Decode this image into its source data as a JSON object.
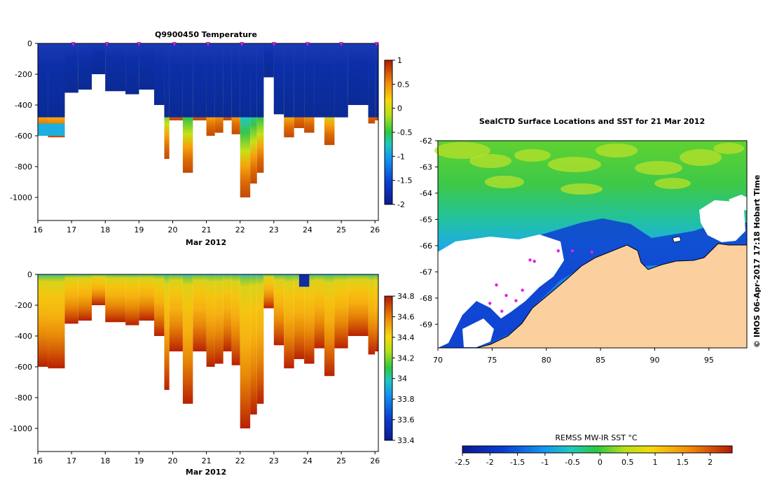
{
  "chart_data": [
    {
      "type": "heatmap",
      "title": "Q9900450  Temperature",
      "variable": "temperature",
      "xlabel": "Mar 2012",
      "ylabel": "",
      "xlim": [
        16,
        26.1
      ],
      "ylim": [
        -1150,
        0
      ],
      "x_ticks": [
        "16",
        "17",
        "18",
        "19",
        "20",
        "21",
        "22",
        "23",
        "24",
        "25",
        "26"
      ],
      "y_ticks": [
        "0",
        "-200",
        "-400",
        "-600",
        "-800",
        "-1000"
      ],
      "colorbar_range": [
        -2,
        1
      ],
      "colorbar_ticks": [
        "1",
        "0.5",
        "0",
        "-0.5",
        "-1",
        "-1.5",
        "-2"
      ],
      "markers": [
        17.05,
        18.05,
        19.0,
        20.05,
        21.05,
        22.05,
        23.0,
        24.0,
        25.0,
        26.05
      ],
      "profiles": [
        {
          "x": 16.0,
          "w": 0.3,
          "depth": 600
        },
        {
          "x": 16.3,
          "w": 0.5,
          "depth": 610
        },
        {
          "x": 16.8,
          "w": 0.4,
          "depth": 320
        },
        {
          "x": 17.2,
          "w": 0.4,
          "depth": 300
        },
        {
          "x": 17.6,
          "w": 0.4,
          "depth": 200
        },
        {
          "x": 18.0,
          "w": 0.6,
          "depth": 310
        },
        {
          "x": 18.6,
          "w": 0.4,
          "depth": 330
        },
        {
          "x": 19.0,
          "w": 0.45,
          "depth": 300
        },
        {
          "x": 19.45,
          "w": 0.3,
          "depth": 400
        },
        {
          "x": 19.75,
          "w": 0.15,
          "depth": 750
        },
        {
          "x": 19.9,
          "w": 0.4,
          "depth": 500
        },
        {
          "x": 20.3,
          "w": 0.3,
          "depth": 840
        },
        {
          "x": 20.6,
          "w": 0.4,
          "depth": 500
        },
        {
          "x": 21.0,
          "w": 0.25,
          "depth": 600
        },
        {
          "x": 21.25,
          "w": 0.25,
          "depth": 580
        },
        {
          "x": 21.5,
          "w": 0.25,
          "depth": 500
        },
        {
          "x": 21.75,
          "w": 0.25,
          "depth": 590
        },
        {
          "x": 22.0,
          "w": 0.3,
          "depth": 1000
        },
        {
          "x": 22.3,
          "w": 0.2,
          "depth": 910
        },
        {
          "x": 22.5,
          "w": 0.2,
          "depth": 840
        },
        {
          "x": 22.7,
          "w": 0.3,
          "depth": 220
        },
        {
          "x": 23.0,
          "w": 0.3,
          "depth": 460
        },
        {
          "x": 23.3,
          "w": 0.3,
          "depth": 610
        },
        {
          "x": 23.6,
          "w": 0.3,
          "depth": 550
        },
        {
          "x": 23.9,
          "w": 0.3,
          "depth": 580
        },
        {
          "x": 24.2,
          "w": 0.3,
          "depth": 480
        },
        {
          "x": 24.5,
          "w": 0.3,
          "depth": 660
        },
        {
          "x": 24.8,
          "w": 0.4,
          "depth": 480
        },
        {
          "x": 25.2,
          "w": 0.6,
          "depth": 400
        },
        {
          "x": 25.8,
          "w": 0.2,
          "depth": 520
        },
        {
          "x": 26.0,
          "w": 0.1,
          "depth": 500
        }
      ]
    },
    {
      "type": "heatmap",
      "title": "",
      "variable": "salinity",
      "xlabel": "Mar 2012",
      "ylabel": "",
      "xlim": [
        16,
        26.1
      ],
      "ylim": [
        -1150,
        0
      ],
      "x_ticks": [
        "16",
        "17",
        "18",
        "19",
        "20",
        "21",
        "22",
        "23",
        "24",
        "25",
        "26"
      ],
      "y_ticks": [
        "0",
        "-200",
        "-400",
        "-600",
        "-800",
        "-1000"
      ],
      "colorbar_range": [
        33.4,
        34.8
      ],
      "colorbar_ticks": [
        "34.8",
        "34.6",
        "34.4",
        "34.2",
        "34",
        "33.8",
        "33.6",
        "33.4"
      ],
      "profiles": "same as temperature section"
    },
    {
      "type": "heatmap",
      "title": "SealCTD Surface Locations and SST for 21 Mar 2012",
      "xlabel": "",
      "ylabel": "",
      "xlim": [
        70,
        98.5
      ],
      "ylim": [
        -69.9,
        -62
      ],
      "x_ticks": [
        "70",
        "75",
        "80",
        "85",
        "90",
        "95"
      ],
      "y_ticks": [
        "-62",
        "-63",
        "-64",
        "-65",
        "-66",
        "-67",
        "-68",
        "-69"
      ],
      "colorbar_label": "REMSS MW-IR SST °C",
      "colorbar_range": [
        -2.5,
        2.4
      ],
      "colorbar_ticks": [
        "-2.5",
        "-2",
        "-1.5",
        "-1",
        "-0.5",
        "0",
        "0.5",
        "1",
        "1.5",
        "2"
      ],
      "credit": "© IMOS 06-Apr-2017 17:18 Hobart Time",
      "seal_surface_locations": [
        {
          "lon": 78.5,
          "lat": -66.55
        },
        {
          "lon": 78.9,
          "lat": -66.6
        },
        {
          "lon": 81.1,
          "lat": -66.2
        },
        {
          "lon": 82.4,
          "lat": -66.2
        },
        {
          "lon": 84.2,
          "lat": -66.25
        },
        {
          "lon": 75.4,
          "lat": -67.5
        },
        {
          "lon": 76.3,
          "lat": -67.9
        },
        {
          "lon": 77.2,
          "lat": -68.1
        },
        {
          "lon": 75.9,
          "lat": -68.5
        },
        {
          "lon": 74.8,
          "lat": -68.2
        },
        {
          "lon": 77.8,
          "lat": -67.7
        }
      ]
    }
  ]
}
